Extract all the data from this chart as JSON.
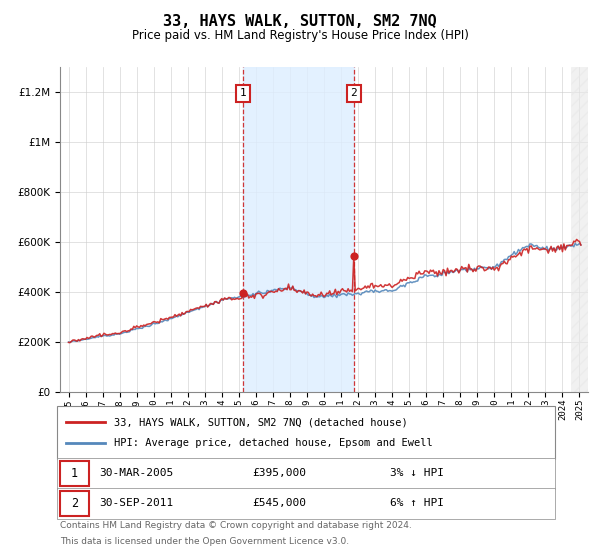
{
  "title": "33, HAYS WALK, SUTTON, SM2 7NQ",
  "subtitle": "Price paid vs. HM Land Registry's House Price Index (HPI)",
  "legend_line1": "33, HAYS WALK, SUTTON, SM2 7NQ (detached house)",
  "legend_line2": "HPI: Average price, detached house, Epsom and Ewell",
  "transaction1_date": "30-MAR-2005",
  "transaction1_price": "£395,000",
  "transaction1_hpi": "3% ↓ HPI",
  "transaction1_year": 2005.25,
  "transaction1_value": 395000,
  "transaction2_date": "30-SEP-2011",
  "transaction2_price": "£545,000",
  "transaction2_hpi": "6% ↑ HPI",
  "transaction2_year": 2011.75,
  "transaction2_value": 545000,
  "footnote1": "Contains HM Land Registry data © Crown copyright and database right 2024.",
  "footnote2": "This data is licensed under the Open Government Licence v3.0.",
  "hpi_color": "#5588bb",
  "price_color": "#cc2222",
  "dot_color": "#cc2222",
  "shaded_color": "#ddeeff",
  "background_color": "#ffffff",
  "grid_color": "#cccccc",
  "ylim_max": 1300000,
  "xlim_start": 1994.5,
  "xlim_end": 2025.5
}
